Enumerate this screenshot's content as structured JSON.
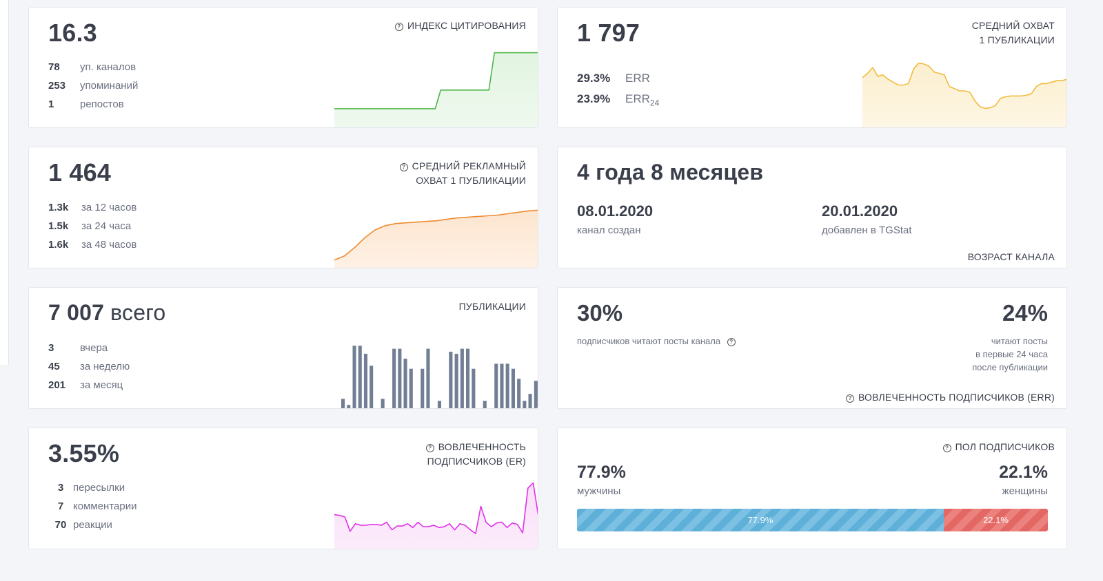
{
  "citation": {
    "value": "16.3",
    "title": "ИНДЕКС ЦИТИРОВАНИЯ",
    "stats": [
      {
        "num": "78",
        "label": "уп. каналов"
      },
      {
        "num": "253",
        "label": "упоминаний"
      },
      {
        "num": "1",
        "label": "репостов"
      }
    ],
    "line_color": "#4cb648",
    "fill_color": "#e2f4e1"
  },
  "reach": {
    "value": "1 797",
    "title_line1": "СРЕДНИЙ ОХВАТ",
    "title_line2": "1 ПУБЛИКАЦИИ",
    "err_value": "29.3%",
    "err_label": "ERR",
    "err24_value": "23.9%",
    "err24_label": "ERR",
    "err24_sub": "24",
    "line_color": "#f2bb3c",
    "fill_color": "#fcefcf"
  },
  "ad_reach": {
    "value": "1 464",
    "title_line1": "СРЕДНИЙ РЕКЛАМНЫЙ",
    "title_line2": "ОХВАТ 1 ПУБЛИКАЦИИ",
    "stats": [
      {
        "num": "1.3k",
        "label": "за 12 часов"
      },
      {
        "num": "1.5k",
        "label": "за 24 часа"
      },
      {
        "num": "1.6k",
        "label": "за 48 часов"
      }
    ],
    "line_color": "#ee8a2f",
    "fill_color": "#fde5cf"
  },
  "age": {
    "value": "4 года 8 месяцев",
    "created_date": "08.01.2020",
    "created_label": "канал создан",
    "added_date": "20.01.2020",
    "added_label": "добавлен в TGStat",
    "title": "ВОЗРАСТ КАНАЛА"
  },
  "posts": {
    "value": "7 007",
    "suffix": "всего",
    "title": "ПУБЛИКАЦИИ",
    "stats": [
      {
        "num": "3",
        "label": "вчера"
      },
      {
        "num": "45",
        "label": "за неделю"
      },
      {
        "num": "201",
        "label": "за месяц"
      }
    ],
    "bar_color": "#727e93"
  },
  "err_card": {
    "left_value": "30%",
    "left_label": "подписчиков читают посты канала",
    "right_value": "24%",
    "right_line1": "читают посты",
    "right_line2": "в первые 24 часа",
    "right_line3": "после публикации",
    "title": "ВОВЛЕЧЕННОСТЬ ПОДПИСЧИКОВ (ERR)"
  },
  "er_card": {
    "value": "3.55%",
    "title_line1": "ВОВЛЕЧЕННОСТЬ",
    "title_line2": "ПОДПИСЧИКОВ (ER)",
    "stats": [
      {
        "num": "3",
        "label": "пересылки"
      },
      {
        "num": "7",
        "label": "комментарии"
      },
      {
        "num": "70",
        "label": "реакции"
      }
    ],
    "line_color": "#df31e8",
    "fill_color": "#f9ddf8"
  },
  "gender": {
    "title": "ПОЛ ПОДПИСЧИКОВ",
    "male_value": "77.9%",
    "male_label": "мужчины",
    "female_value": "22.1%",
    "female_label": "женщины",
    "male_bar_label": "77.9%",
    "female_bar_label": "22.1%",
    "male_share": 0.779,
    "male_color": "#66b6de",
    "female_color": "#e76d69"
  },
  "chart_data": [
    {
      "type": "area",
      "name": "citation",
      "x": [
        0,
        1,
        2,
        3,
        4,
        5,
        6,
        7,
        8,
        9,
        10,
        11,
        12,
        13,
        14,
        15,
        16,
        17,
        18,
        19
      ],
      "y": [
        1,
        1,
        1,
        1,
        1,
        1,
        1,
        1,
        1,
        1,
        2,
        2,
        2,
        2,
        2,
        4,
        4,
        4,
        4,
        4
      ],
      "ylim": [
        0,
        4.5
      ]
    },
    {
      "type": "area",
      "name": "reach",
      "x": [
        0,
        1,
        2,
        3,
        4,
        5,
        6,
        7,
        8,
        9,
        10,
        11,
        12,
        13,
        14,
        15,
        16,
        17,
        18,
        19,
        20,
        21,
        22,
        23,
        24,
        25,
        26,
        27,
        28,
        29,
        30,
        31,
        32,
        33,
        34,
        35,
        36,
        37,
        38,
        39,
        40
      ],
      "y": [
        68,
        74,
        82,
        70,
        72,
        66,
        62,
        58,
        58,
        60,
        80,
        88,
        87,
        84,
        76,
        74,
        72,
        56,
        53,
        50,
        50,
        48,
        36,
        28,
        26,
        27,
        30,
        40,
        42,
        43,
        43,
        43,
        44,
        46,
        56,
        60,
        60,
        62,
        64,
        64,
        66
      ],
      "ylim": [
        0,
        100
      ]
    },
    {
      "type": "area",
      "name": "ad_reach",
      "x": [
        0,
        1,
        2,
        3,
        4,
        5,
        6,
        7,
        8,
        9,
        10,
        11,
        12,
        13,
        14,
        15,
        16,
        17,
        18,
        19,
        20
      ],
      "y": [
        10,
        16,
        28,
        42,
        53,
        59,
        62,
        63,
        64,
        65,
        66,
        68,
        70,
        71,
        72,
        73,
        74,
        76,
        78,
        80,
        81
      ],
      "ylim": [
        0,
        100
      ]
    },
    {
      "type": "bar",
      "name": "posts",
      "values": [
        1,
        0.4,
        6.3,
        6.3,
        5.5,
        4.3,
        0,
        1,
        0,
        6,
        6,
        5,
        4,
        0,
        4,
        6,
        0,
        0.8,
        0,
        5.7,
        5.5,
        6,
        6,
        4,
        0,
        0.8,
        0,
        4.5,
        4.5,
        4.5,
        4,
        3,
        0.8,
        1.5,
        2.8
      ],
      "ylim": [
        0,
        7
      ]
    },
    {
      "type": "area",
      "name": "er",
      "x": [
        0,
        1,
        2,
        3,
        4,
        5,
        6,
        7,
        8,
        9,
        10,
        11,
        12,
        13,
        14,
        15,
        16,
        17,
        18,
        19,
        20,
        21,
        22,
        23,
        24,
        25,
        26,
        27,
        28,
        29,
        30,
        31,
        32,
        33,
        34,
        35,
        36,
        37,
        38,
        39
      ],
      "y": [
        44,
        43,
        41,
        22,
        32,
        30,
        30,
        31,
        31,
        30,
        34,
        24,
        29,
        29,
        32,
        27,
        34,
        28,
        28,
        30,
        27,
        28,
        32,
        24,
        32,
        30,
        24,
        19,
        55,
        34,
        28,
        33,
        34,
        27,
        33,
        31,
        20,
        79,
        86,
        42
      ],
      "ylim": [
        0,
        100
      ]
    }
  ]
}
